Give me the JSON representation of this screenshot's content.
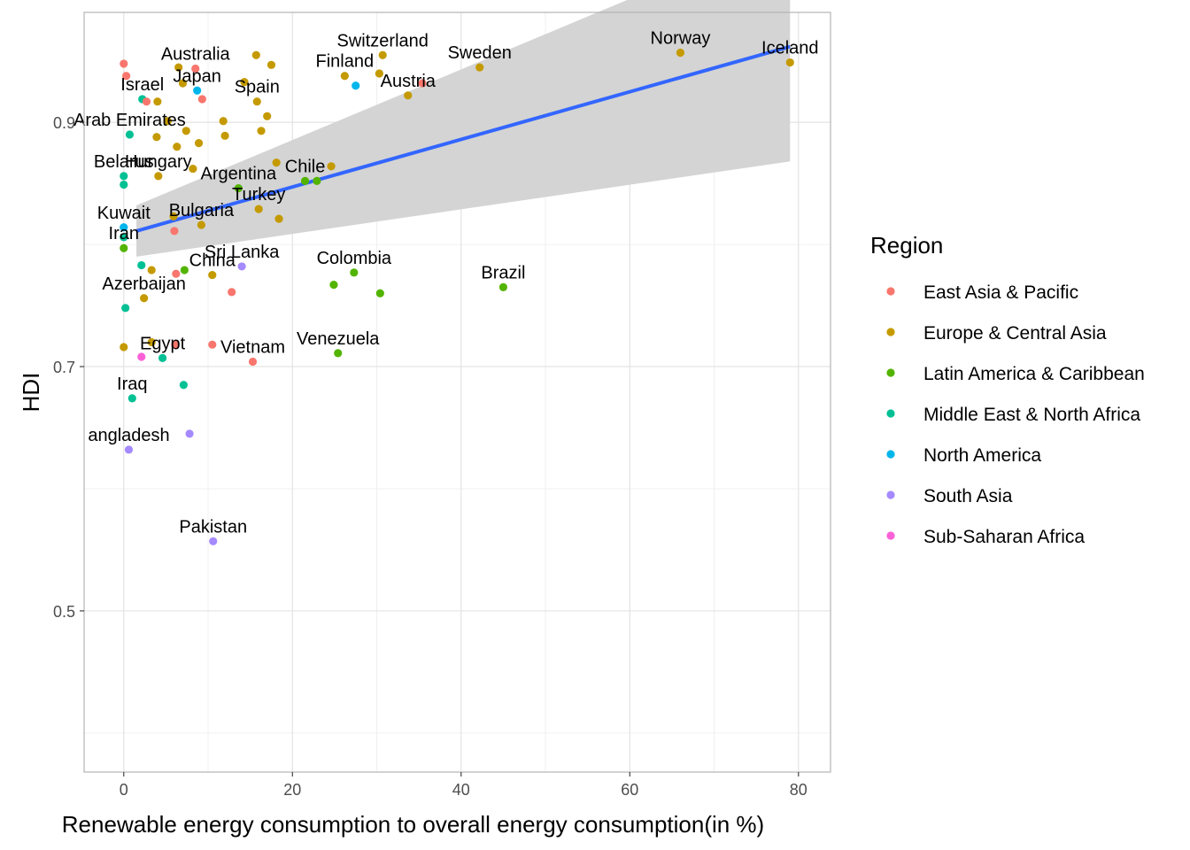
{
  "chart_data": {
    "type": "scatter",
    "xlabel": "Renewable energy consumption to overall energy consumption(in %)",
    "ylabel": "HDI",
    "xlim": [
      -4.7,
      83.8
    ],
    "ylim": [
      0.368,
      0.99
    ],
    "x_ticks": [
      0,
      20,
      40,
      60,
      80
    ],
    "y_ticks": [
      0.5,
      0.7,
      0.9
    ],
    "y_tick_labels": [
      "0.5",
      "0.7",
      "0.9"
    ],
    "grid": true,
    "legend": {
      "title": "Region",
      "position": "right",
      "entries": [
        {
          "name": "East Asia & Pacific",
          "color": "#F8766D"
        },
        {
          "name": "Europe & Central Asia",
          "color": "#C49A00"
        },
        {
          "name": "Latin America & Caribbean",
          "color": "#53B400"
        },
        {
          "name": "Middle East & North Africa",
          "color": "#00C094"
        },
        {
          "name": "North America",
          "color": "#00B6EB"
        },
        {
          "name": "South Asia",
          "color": "#A58AFF"
        },
        {
          "name": "Sub-Saharan Africa",
          "color": "#FB61D7"
        }
      ]
    },
    "trend": {
      "x": [
        1.5,
        79
      ],
      "y": [
        0.811,
        0.962
      ],
      "band_lower": [
        0.79,
        0.868
      ],
      "band_upper": [
        0.832,
        1.056
      ],
      "color": "#3366FF",
      "band_color": "#d4d4d4"
    },
    "points": [
      {
        "label": "Iceland",
        "x": 79.0,
        "y": 0.949,
        "region": 1
      },
      {
        "label": "Norway",
        "x": 66.0,
        "y": 0.957,
        "region": 1
      },
      {
        "label": "Sweden",
        "x": 42.2,
        "y": 0.945,
        "region": 1
      },
      {
        "label": "Switzerland",
        "x": 30.7,
        "y": 0.955,
        "region": 1
      },
      {
        "label": "Finland",
        "x": 26.2,
        "y": 0.938,
        "region": 1
      },
      {
        "label": "Austria",
        "x": 33.7,
        "y": 0.922,
        "region": 1
      },
      {
        "label": "",
        "x": 35.4,
        "y": 0.932,
        "region": 0
      },
      {
        "label": "",
        "x": 27.5,
        "y": 0.93,
        "region": 4
      },
      {
        "label": "",
        "x": 30.3,
        "y": 0.94,
        "region": 1
      },
      {
        "label": "Australia",
        "x": 8.5,
        "y": 0.944,
        "region": 0
      },
      {
        "label": "",
        "x": 6.5,
        "y": 0.945,
        "region": 1
      },
      {
        "label": "",
        "x": 15.7,
        "y": 0.955,
        "region": 1
      },
      {
        "label": "",
        "x": 17.5,
        "y": 0.947,
        "region": 1
      },
      {
        "label": "",
        "x": 14.3,
        "y": 0.933,
        "region": 1
      },
      {
        "label": "",
        "x": 7.0,
        "y": 0.932,
        "region": 1
      },
      {
        "label": "Japan",
        "x": 8.7,
        "y": 0.926,
        "region": 4
      },
      {
        "label": "",
        "x": 9.3,
        "y": 0.919,
        "region": 0
      },
      {
        "label": "Israel",
        "x": 2.2,
        "y": 0.919,
        "region": 3
      },
      {
        "label": "",
        "x": 0.0,
        "y": 0.948,
        "region": 0
      },
      {
        "label": "",
        "x": 0.3,
        "y": 0.938,
        "region": 0
      },
      {
        "label": "",
        "x": 2.7,
        "y": 0.917,
        "region": 0
      },
      {
        "label": "",
        "x": 4.0,
        "y": 0.917,
        "region": 1
      },
      {
        "label": "Spain",
        "x": 15.8,
        "y": 0.917,
        "region": 1
      },
      {
        "label": "",
        "x": 17.0,
        "y": 0.905,
        "region": 1
      },
      {
        "label": "",
        "x": 16.3,
        "y": 0.893,
        "region": 1
      },
      {
        "label": "Arab Emirates",
        "x": 0.7,
        "y": 0.89,
        "region": 3
      },
      {
        "label": "",
        "x": 5.2,
        "y": 0.901,
        "region": 1
      },
      {
        "label": "",
        "x": 7.4,
        "y": 0.893,
        "region": 1
      },
      {
        "label": "",
        "x": 11.8,
        "y": 0.901,
        "region": 1
      },
      {
        "label": "",
        "x": 12.0,
        "y": 0.889,
        "region": 1
      },
      {
        "label": "",
        "x": 3.9,
        "y": 0.888,
        "region": 1
      },
      {
        "label": "",
        "x": 8.9,
        "y": 0.883,
        "region": 1
      },
      {
        "label": "",
        "x": 6.3,
        "y": 0.88,
        "region": 1
      },
      {
        "label": "Hungary",
        "x": 4.1,
        "y": 0.856,
        "region": 1
      },
      {
        "label": "Argentina",
        "x": 13.6,
        "y": 0.846,
        "region": 2
      },
      {
        "label": "",
        "x": 8.2,
        "y": 0.862,
        "region": 1
      },
      {
        "label": "",
        "x": 18.1,
        "y": 0.867,
        "region": 1
      },
      {
        "label": "Chile",
        "x": 21.5,
        "y": 0.852,
        "region": 2
      },
      {
        "label": "",
        "x": 22.9,
        "y": 0.852,
        "region": 2
      },
      {
        "label": "",
        "x": 24.6,
        "y": 0.864,
        "region": 1
      },
      {
        "label": "Belarus",
        "x": 0.0,
        "y": 0.856,
        "region": 3
      },
      {
        "label": "",
        "x": 0.0,
        "y": 0.849,
        "region": 3
      },
      {
        "label": "Bulgaria",
        "x": 9.2,
        "y": 0.816,
        "region": 1
      },
      {
        "label": "",
        "x": 5.9,
        "y": 0.823,
        "region": 1
      },
      {
        "label": "Turkey",
        "x": 16.0,
        "y": 0.829,
        "region": 1
      },
      {
        "label": "",
        "x": 18.4,
        "y": 0.821,
        "region": 1
      },
      {
        "label": "Kuwait",
        "x": 0.0,
        "y": 0.814,
        "region": 4
      },
      {
        "label": "",
        "x": 0.0,
        "y": 0.806,
        "region": 3
      },
      {
        "label": "",
        "x": 6.0,
        "y": 0.811,
        "region": 0
      },
      {
        "label": "Iran",
        "x": 0.0,
        "y": 0.797,
        "region": 2
      },
      {
        "label": "Sri Lanka",
        "x": 14.0,
        "y": 0.782,
        "region": 5
      },
      {
        "label": "Colombia",
        "x": 27.3,
        "y": 0.777,
        "region": 2
      },
      {
        "label": "",
        "x": 24.9,
        "y": 0.767,
        "region": 2
      },
      {
        "label": "",
        "x": 30.4,
        "y": 0.76,
        "region": 2
      },
      {
        "label": "Brazil",
        "x": 45.0,
        "y": 0.765,
        "region": 2
      },
      {
        "label": "Azerbaijan",
        "x": 2.4,
        "y": 0.756,
        "region": 1
      },
      {
        "label": "",
        "x": 2.1,
        "y": 0.783,
        "region": 3
      },
      {
        "label": "",
        "x": 3.3,
        "y": 0.779,
        "region": 1
      },
      {
        "label": "",
        "x": 6.2,
        "y": 0.776,
        "region": 0
      },
      {
        "label": "",
        "x": 7.2,
        "y": 0.779,
        "region": 2
      },
      {
        "label": "China",
        "x": 10.5,
        "y": 0.775,
        "region": 1
      },
      {
        "label": "",
        "x": 12.8,
        "y": 0.761,
        "region": 0
      },
      {
        "label": "",
        "x": 0.2,
        "y": 0.748,
        "region": 3
      },
      {
        "label": "Egypt",
        "x": 4.6,
        "y": 0.707,
        "region": 3
      },
      {
        "label": "",
        "x": 0.0,
        "y": 0.716,
        "region": 1
      },
      {
        "label": "",
        "x": 3.3,
        "y": 0.72,
        "region": 1
      },
      {
        "label": "",
        "x": 6.1,
        "y": 0.718,
        "region": 0
      },
      {
        "label": "",
        "x": 2.1,
        "y": 0.708,
        "region": 6
      },
      {
        "label": "Vietnam",
        "x": 15.3,
        "y": 0.704,
        "region": 0
      },
      {
        "label": "",
        "x": 10.5,
        "y": 0.718,
        "region": 0
      },
      {
        "label": "Venezuela",
        "x": 25.4,
        "y": 0.711,
        "region": 2
      },
      {
        "label": "Iraq",
        "x": 1.0,
        "y": 0.674,
        "region": 3
      },
      {
        "label": "",
        "x": 7.1,
        "y": 0.685,
        "region": 3
      },
      {
        "label": "angladesh",
        "x": 0.6,
        "y": 0.632,
        "region": 5
      },
      {
        "label": "",
        "x": 7.8,
        "y": 0.645,
        "region": 5
      },
      {
        "label": "Pakistan",
        "x": 10.6,
        "y": 0.557,
        "region": 5
      }
    ]
  }
}
